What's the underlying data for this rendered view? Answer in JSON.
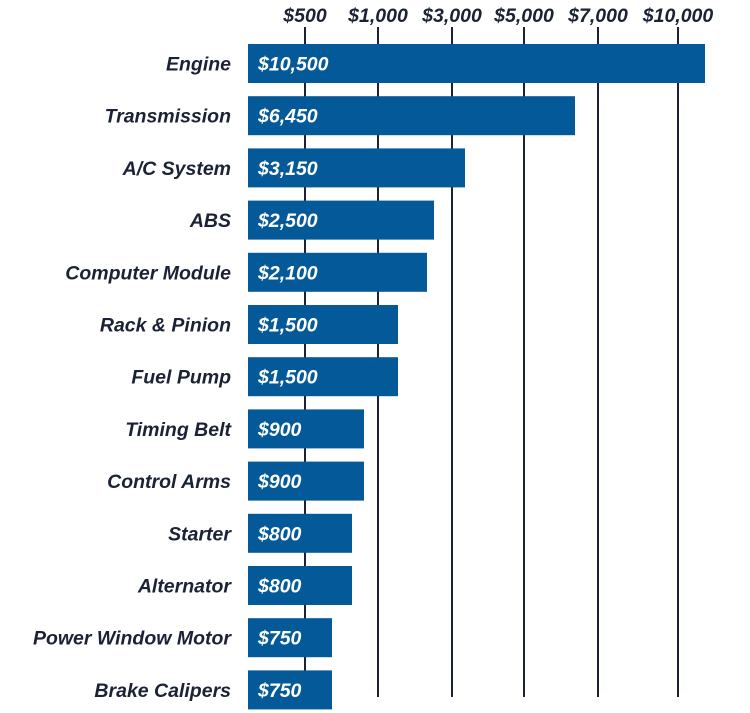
{
  "chart_data": {
    "type": "bar",
    "orientation": "horizontal",
    "title": "",
    "xlabel": "",
    "ylabel": "",
    "categories": [
      "Engine",
      "Transmission",
      "A/C System",
      "ABS",
      "Computer Module",
      "Rack & Pinion",
      "Fuel Pump",
      "Timing Belt",
      "Control Arms",
      "Starter",
      "Alternator",
      "Power Window Motor",
      "Brake Calipers"
    ],
    "values": [
      10500,
      6450,
      3150,
      2500,
      2100,
      1500,
      1500,
      900,
      900,
      800,
      800,
      750,
      750
    ],
    "value_labels": [
      "$10,500",
      "$6,450",
      "$3,150",
      "$2,500",
      "$2,100",
      "$1,500",
      "$1,500",
      "$900",
      "$900",
      "$800",
      "$800",
      "$750",
      "$750"
    ],
    "x_ticks": [
      500,
      1000,
      3000,
      5000,
      7000,
      10000
    ],
    "x_tick_labels": [
      "$500",
      "$1,000",
      "$3,000",
      "$5,000",
      "$7,000",
      "$10,000"
    ],
    "x_axis_position": "top",
    "grid": true,
    "bar_color": "#045a99",
    "text_color": "#1b2235"
  }
}
